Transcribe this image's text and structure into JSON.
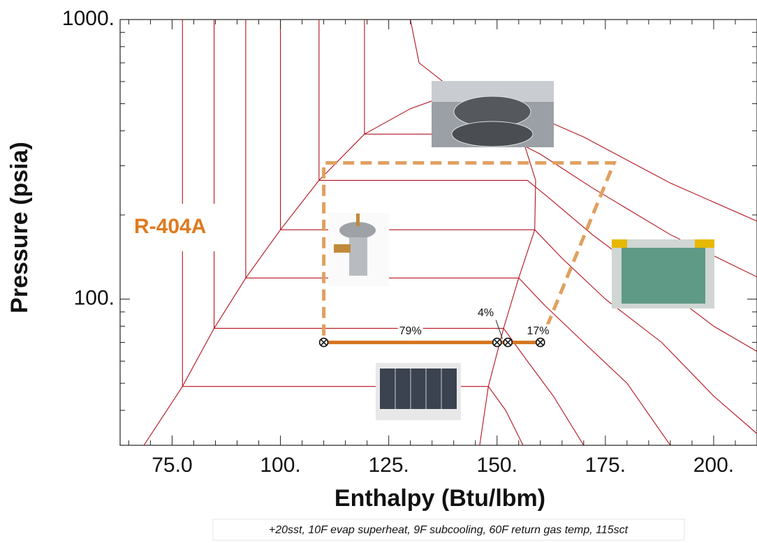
{
  "chart_data": {
    "type": "ph-diagram",
    "xlabel": "Enthalpy (Btu/lbm)",
    "ylabel": "Pressure (psia)",
    "annotation": "R-404A",
    "footnote": "+20sst, 10F evap superheat, 9F subcooling, 60F return gas temp, 115sct",
    "xlim": [
      63,
      210
    ],
    "ylim": [
      30,
      1000
    ],
    "log_y": true,
    "xticks": [
      {
        "value": 75,
        "label": "75.0"
      },
      {
        "value": 100,
        "label": "100."
      },
      {
        "value": 125,
        "label": "125."
      },
      {
        "value": 150,
        "label": "150."
      },
      {
        "value": 175,
        "label": "175."
      },
      {
        "value": 200,
        "label": "200."
      }
    ],
    "xminor": [
      65,
      70,
      80,
      85,
      90,
      95,
      105,
      110,
      115,
      120,
      130,
      135,
      140,
      145,
      155,
      160,
      165,
      170,
      180,
      185,
      190,
      195,
      205
    ],
    "yticks": [
      {
        "value": 100,
        "label": "100."
      },
      {
        "value": 1000,
        "label": "1000."
      }
    ],
    "yminor": [
      40,
      50,
      60,
      70,
      80,
      90,
      200,
      300,
      400,
      500,
      600,
      700,
      800,
      900
    ],
    "curve_color": "#b3121c",
    "curves": [
      {
        "x": [
          68.5,
          77.4,
          84.7,
          92,
          100,
          108.9,
          119.4,
          130,
          137,
          145,
          151,
          156,
          158.9,
          158.7,
          155,
          151.5,
          148,
          146
        ],
        "y": [
          30,
          48.7,
          78.6,
          119,
          177,
          266,
          389,
          480,
          525,
          505,
          460,
          370,
          266,
          177,
          119,
          78.6,
          48.7,
          30
        ]
      },
      {
        "x": [
          77.4,
          77.4,
          148,
          152,
          156
        ],
        "y": [
          1000,
          48.7,
          48.7,
          40,
          30
        ]
      },
      {
        "x": [
          84.7,
          84.7,
          151.5,
          157,
          163,
          170
        ],
        "y": [
          1000,
          78.6,
          78.6,
          60,
          45,
          30
        ]
      },
      {
        "x": [
          92,
          92,
          155,
          161,
          170,
          180,
          190
        ],
        "y": [
          1000,
          119,
          119,
          95,
          70,
          50,
          30
        ]
      },
      {
        "x": [
          100,
          100,
          158.7,
          165,
          175,
          188,
          200,
          210
        ],
        "y": [
          1000,
          177,
          177,
          140,
          100,
          70,
          45,
          33
        ]
      },
      {
        "x": [
          108.9,
          108.9,
          157,
          162,
          172,
          185,
          200,
          210
        ],
        "y": [
          1000,
          266,
          266,
          230,
          170,
          120,
          80,
          65
        ]
      },
      {
        "x": [
          119.4,
          119.4,
          151,
          160,
          172,
          190,
          210
        ],
        "y": [
          1000,
          389,
          389,
          330,
          250,
          170,
          120
        ]
      },
      {
        "x": [
          130,
          132,
          140,
          155,
          170,
          190,
          210
        ],
        "y": [
          1000,
          700,
          560,
          480,
          380,
          260,
          190
        ]
      }
    ],
    "cycle_color": "#e0a060",
    "cycle": {
      "x": [
        160,
        177,
        110,
        110
      ],
      "y": [
        70,
        307,
        307,
        70
      ]
    },
    "evaporator_color": "#d6751e",
    "points": {
      "x": [
        110,
        150,
        152.5,
        160
      ],
      "y": [
        70,
        70,
        70,
        70
      ]
    },
    "segment_labels": [
      "79%",
      "4%",
      "17%"
    ]
  }
}
